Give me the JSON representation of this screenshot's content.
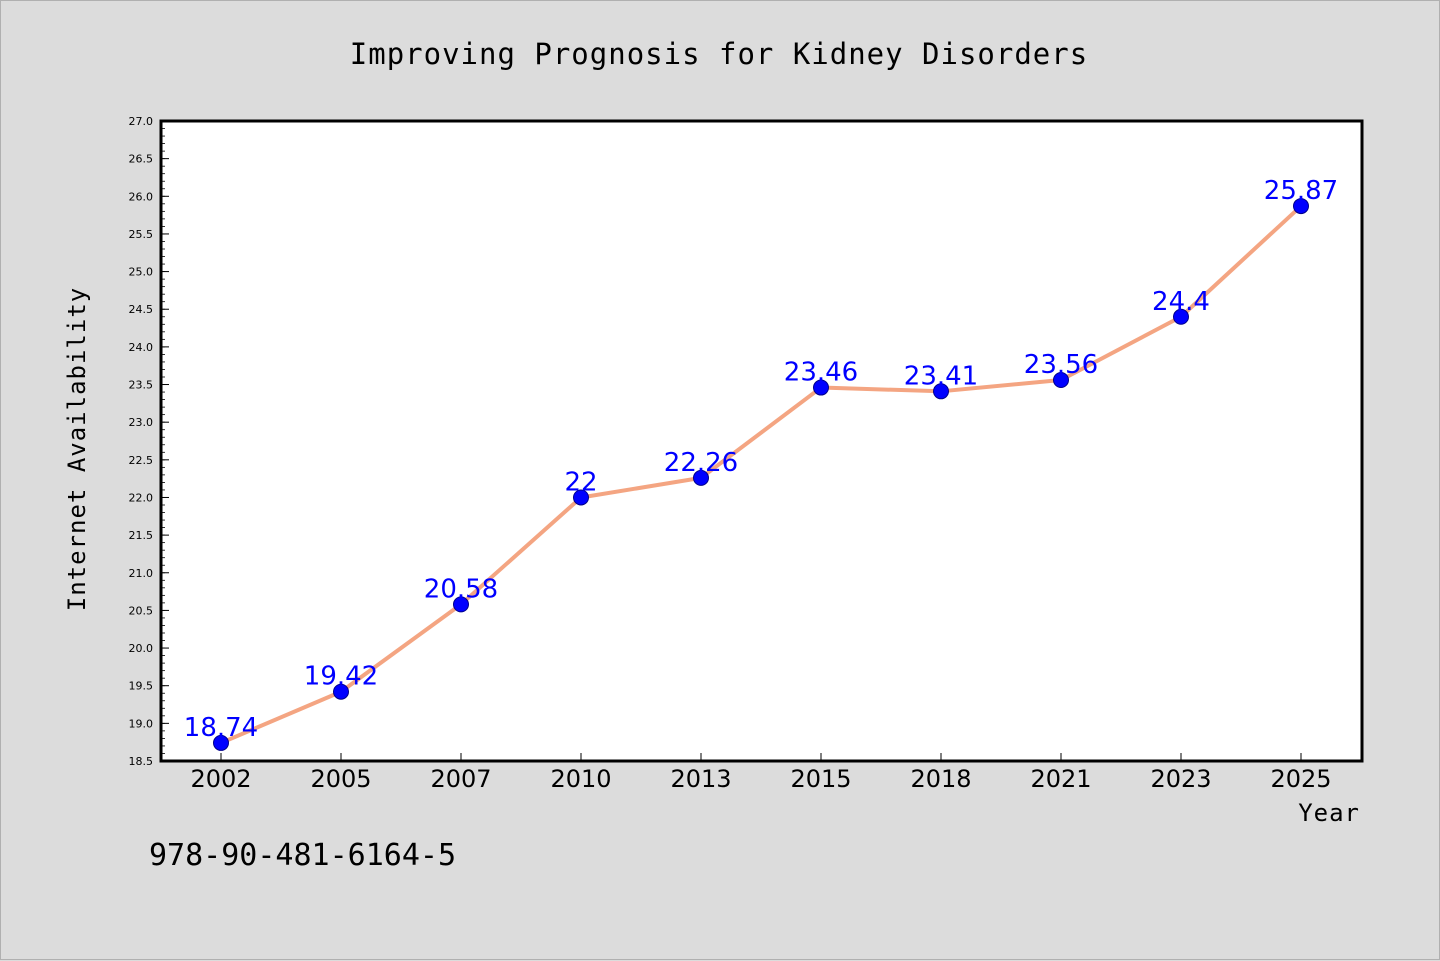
{
  "chart_data": {
    "type": "line",
    "title": "Improving Prognosis for Kidney Disorders",
    "xlabel": "Year",
    "ylabel": "Internet Availability",
    "categories": [
      "2002",
      "2005",
      "2007",
      "2010",
      "2013",
      "2015",
      "2018",
      "2021",
      "2023",
      "2025"
    ],
    "values": [
      18.74,
      19.42,
      20.58,
      22,
      22.26,
      23.46,
      23.41,
      23.56,
      24.4,
      25.87
    ],
    "data_labels": [
      "18.74",
      "19.42",
      "20.58",
      "22",
      "22.26",
      "23.46",
      "23.41",
      "23.56",
      "24.4",
      "25.87"
    ],
    "ylim": [
      18.5,
      27.0
    ],
    "yticks": [
      "18.5",
      "19.0",
      "19.5",
      "20.0",
      "20.5",
      "21.0",
      "21.5",
      "22.0",
      "22.5",
      "23.0",
      "23.5",
      "24.0",
      "24.5",
      "25.0",
      "25.5",
      "26.0",
      "26.5",
      "27.0"
    ],
    "grid": false,
    "line_color": "#f4a582",
    "marker_color": "#0000ff",
    "label_color": "#0000ff"
  },
  "footer": {
    "code": "978-90-481-6164-5"
  }
}
